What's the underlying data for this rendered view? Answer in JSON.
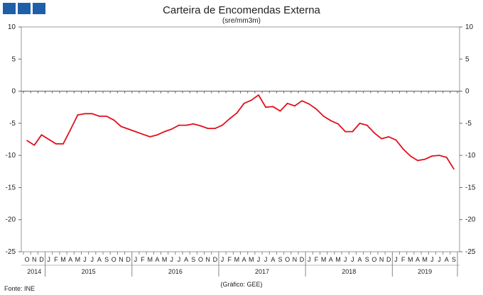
{
  "logo": {
    "icon": "ine-logo-icon",
    "color": "#1f5fa8"
  },
  "title": "Carteira de Encomendas Externa",
  "subtitle": "(sre/mm3m)",
  "source": "Fonte:  INE",
  "credit": "(Gráfico:  GEE)",
  "chart_data": {
    "type": "line",
    "title": "Carteira de Encomendas Externa",
    "subtitle": "(sre/mm3m)",
    "ylim": [
      -25,
      10
    ],
    "yticks": [
      10,
      5,
      0,
      -5,
      -10,
      -15,
      -20,
      -25
    ],
    "grid": false,
    "line_color": "#e0101c",
    "x": [
      "2014-10",
      "2014-11",
      "2014-12",
      "2015-01",
      "2015-02",
      "2015-03",
      "2015-04",
      "2015-05",
      "2015-06",
      "2015-07",
      "2015-08",
      "2015-09",
      "2015-10",
      "2015-11",
      "2015-12",
      "2016-01",
      "2016-02",
      "2016-03",
      "2016-04",
      "2016-05",
      "2016-06",
      "2016-07",
      "2016-08",
      "2016-09",
      "2016-10",
      "2016-11",
      "2016-12",
      "2017-01",
      "2017-02",
      "2017-03",
      "2017-04",
      "2017-05",
      "2017-06",
      "2017-07",
      "2017-08",
      "2017-09",
      "2017-10",
      "2017-11",
      "2017-12",
      "2018-01",
      "2018-02",
      "2018-03",
      "2018-04",
      "2018-05",
      "2018-06",
      "2018-07",
      "2018-08",
      "2018-09",
      "2018-10",
      "2018-11",
      "2018-12",
      "2019-01",
      "2019-02",
      "2019-03",
      "2019-04",
      "2019-05",
      "2019-06",
      "2019-07",
      "2019-08",
      "2019-09"
    ],
    "x_month_labels": [
      "O",
      "N",
      "D",
      "J",
      "F",
      "M",
      "A",
      "M",
      "J",
      "J",
      "A",
      "S",
      "O",
      "N",
      "D",
      "J",
      "F",
      "M",
      "A",
      "M",
      "J",
      "J",
      "A",
      "S",
      "O",
      "N",
      "D",
      "J",
      "F",
      "M",
      "A",
      "M",
      "J",
      "J",
      "A",
      "S",
      "O",
      "N",
      "D",
      "J",
      "F",
      "M",
      "A",
      "M",
      "J",
      "J",
      "A",
      "S",
      "O",
      "N",
      "D",
      "J",
      "F",
      "M",
      "A",
      "M",
      "J",
      "J",
      "A",
      "S"
    ],
    "year_labels": [
      {
        "label": "2014",
        "start": 0,
        "end": 2
      },
      {
        "label": "2015",
        "start": 3,
        "end": 14
      },
      {
        "label": "2016",
        "start": 15,
        "end": 26
      },
      {
        "label": "2017",
        "start": 27,
        "end": 38
      },
      {
        "label": "2018",
        "start": 39,
        "end": 50
      },
      {
        "label": "2019",
        "start": 51,
        "end": 59
      }
    ],
    "values": [
      -7.7,
      -8.4,
      -6.8,
      -7.5,
      -8.2,
      -8.2,
      -6.0,
      -3.7,
      -3.5,
      -3.5,
      -3.9,
      -3.9,
      -4.5,
      -5.5,
      -5.9,
      -6.3,
      -6.7,
      -7.1,
      -6.8,
      -6.3,
      -5.9,
      -5.3,
      -5.3,
      -5.1,
      -5.4,
      -5.8,
      -5.8,
      -5.3,
      -4.3,
      -3.4,
      -1.9,
      -1.4,
      -0.6,
      -2.5,
      -2.4,
      -3.1,
      -1.9,
      -2.3,
      -1.5,
      -2.0,
      -2.8,
      -3.9,
      -4.6,
      -5.1,
      -6.3,
      -6.3,
      -5.0,
      -5.3,
      -6.5,
      -7.4,
      -7.1,
      -7.6,
      -9.0,
      -10.1,
      -10.8,
      -10.6,
      -10.1,
      -10.0,
      -10.3,
      -12.1
    ]
  }
}
